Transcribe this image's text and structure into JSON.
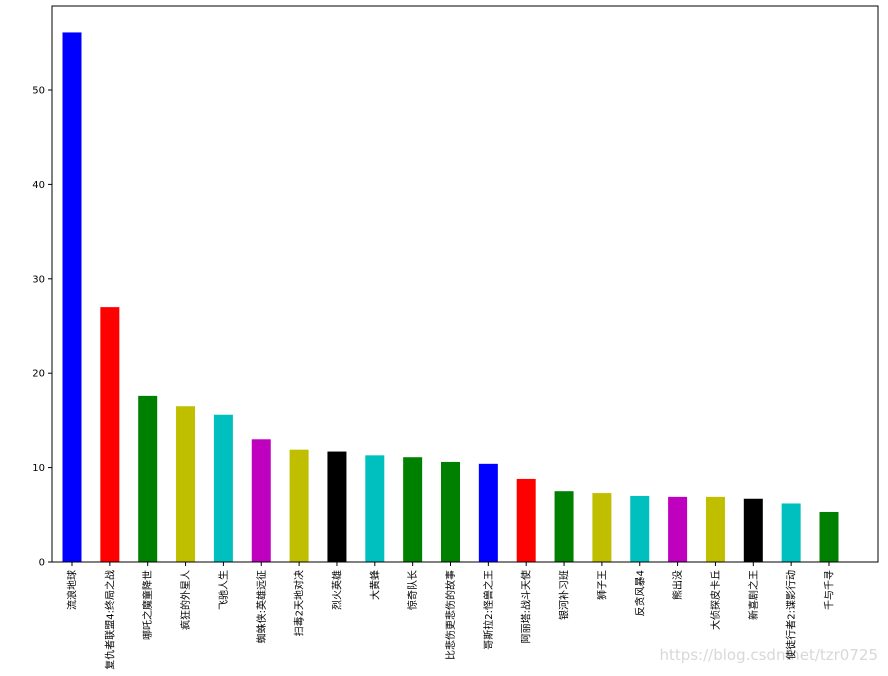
{
  "chart_data": {
    "type": "bar",
    "categories": [
      "流浪地球",
      "复仇者联盟4:终局之战",
      "哪吒之魔童降世",
      "疯狂的外星人",
      "飞驰人生",
      "蜘蛛侠:英雄远征",
      "扫毒2天地对决",
      "烈火英雄",
      "大黄蜂",
      "惊奇队长",
      "比悲伤更悲伤的故事",
      "哥斯拉2:怪兽之王",
      "阿丽塔:战斗天使",
      "银河补习班",
      "狮子王",
      "反贪风暴4",
      "熊出没",
      "大侦探皮卡丘",
      "新喜剧之王",
      "使徒行者2:谍影行动",
      "千与千寻"
    ],
    "values": [
      56.1,
      27.0,
      17.6,
      16.5,
      15.6,
      13.0,
      11.9,
      11.7,
      11.3,
      11.1,
      10.6,
      10.4,
      8.8,
      7.5,
      7.3,
      7.0,
      6.9,
      6.9,
      6.7,
      6.2,
      5.3
    ],
    "colors": [
      "#0000ff",
      "#ff0000",
      "#008000",
      "#bfbf00",
      "#00bfbf",
      "#bf00bf",
      "#bfbf00",
      "#000000",
      "#00bfbf",
      "#008000",
      "#008000",
      "#0000ff",
      "#ff0000",
      "#008000",
      "#bfbf00",
      "#00bfbf",
      "#bf00bf",
      "#bfbf00",
      "#000000",
      "#00bfbf",
      "#008000"
    ],
    "ylim": [
      0,
      58.9
    ],
    "yticks": [
      0,
      10,
      20,
      30,
      40,
      50
    ],
    "watermark": "https://blog.csdn.net/tzr0725"
  }
}
